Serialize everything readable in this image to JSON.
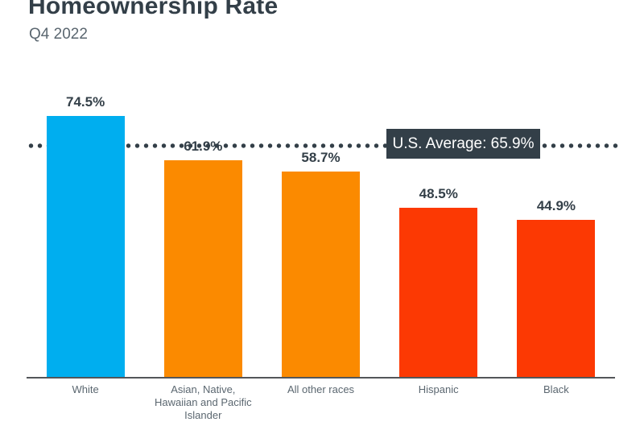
{
  "header": {
    "title": "Homeownership Rate",
    "subtitle": "Q4 2022"
  },
  "chart_data": {
    "type": "bar",
    "title": "Homeownership Rate",
    "subtitle": "Q4 2022",
    "categories": [
      "White",
      "Asian, Native, Hawaiian and Pacific Islander",
      "All other races",
      "Hispanic",
      "Black"
    ],
    "values": [
      74.5,
      61.9,
      58.7,
      48.5,
      44.9
    ],
    "value_labels": [
      "74.5%",
      "61.9%",
      "58.7%",
      "48.5%",
      "44.9%"
    ],
    "bar_colors": [
      "#00AEEF",
      "#FB8A00",
      "#FB8A00",
      "#FC3903",
      "#FC3903"
    ],
    "reference_line": {
      "label": "U.S. Average: 65.9%",
      "value": 65.9,
      "style": "dotted",
      "color": "#333F48"
    },
    "xlabel": "",
    "ylabel": "",
    "ylim": [
      0,
      85
    ],
    "grid": false,
    "legend": false
  },
  "colors": {
    "title_text": "#333F48",
    "subtitle_text": "#5B6770",
    "bar_blue": "#00AEEF",
    "bar_orange": "#FB8A00",
    "bar_red": "#FC3903",
    "average_badge_bg": "#333F48",
    "average_badge_text": "#ffffff",
    "axis": "#53565A"
  }
}
